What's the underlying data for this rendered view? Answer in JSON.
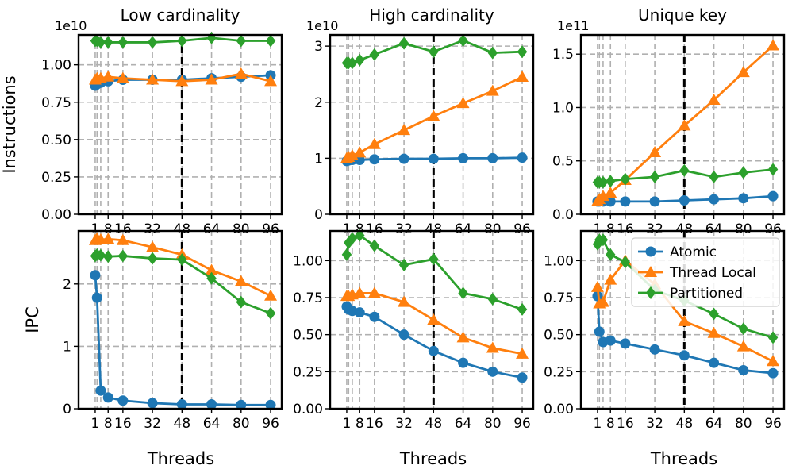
{
  "chart_data": {
    "type": "line",
    "x": [
      1,
      2,
      4,
      8,
      16,
      32,
      48,
      64,
      80,
      96
    ],
    "xticks": [
      1,
      8,
      16,
      32,
      48,
      64,
      80,
      96
    ],
    "xtick_labels": [
      "1",
      "8",
      "16",
      "32",
      "48",
      "64",
      "80",
      "96"
    ],
    "xlim": [
      -8,
      102
    ],
    "marker_line_x": 48,
    "series_styles": [
      {
        "name": "Atomic",
        "color": "#1f77b4",
        "marker": "circle"
      },
      {
        "name": "Thread Local",
        "color": "#ff7f0e",
        "marker": "triangle"
      },
      {
        "name": "Partitioned",
        "color": "#2ca02c",
        "marker": "diamond"
      }
    ],
    "legend": {
      "placement": "top-right of bottom-right panel",
      "entries": [
        "Atomic",
        "Thread Local",
        "Partitioned"
      ]
    },
    "row_labels": [
      "Instructions",
      "IPC"
    ],
    "xlabel": "Threads",
    "panels": [
      {
        "title": "Low cardinality",
        "ylabel": "Instructions",
        "offset_label": "1e10",
        "ylim": [
          0,
          1.2
        ],
        "yticks": [
          0,
          0.25,
          0.5,
          0.75,
          1.0
        ],
        "ytick_labels": [
          "0.00",
          "0.25",
          "0.50",
          "0.75",
          "1.00"
        ],
        "series": [
          {
            "name": "Atomic",
            "values": [
              0.86,
              0.87,
              0.88,
              0.89,
              0.9,
              0.9,
              0.9,
              0.91,
              0.92,
              0.93
            ]
          },
          {
            "name": "Thread Local",
            "values": [
              0.9,
              0.91,
              0.91,
              0.92,
              0.91,
              0.9,
              0.89,
              0.9,
              0.94,
              0.89
            ]
          },
          {
            "name": "Partitioned",
            "values": [
              1.16,
              1.16,
              1.15,
              1.15,
              1.15,
              1.15,
              1.16,
              1.18,
              1.16,
              1.16
            ]
          }
        ]
      },
      {
        "title": "High cardinality",
        "ylabel": "",
        "offset_label": "1e10",
        "ylim": [
          0,
          3.2
        ],
        "yticks": [
          0,
          1,
          2,
          3
        ],
        "ytick_labels": [
          "0",
          "1",
          "2",
          "3"
        ],
        "series": [
          {
            "name": "Atomic",
            "values": [
              0.95,
              0.96,
              0.97,
              0.97,
              0.98,
              0.99,
              0.99,
              1.0,
              1.0,
              1.01
            ]
          },
          {
            "name": "Thread Local",
            "values": [
              1.0,
              1.02,
              1.05,
              1.1,
              1.25,
              1.5,
              1.75,
              1.98,
              2.2,
              2.45
            ]
          },
          {
            "name": "Partitioned",
            "values": [
              2.7,
              2.7,
              2.7,
              2.75,
              2.85,
              3.05,
              2.9,
              3.1,
              2.88,
              2.9
            ]
          }
        ]
      },
      {
        "title": "Unique key",
        "ylabel": "",
        "offset_label": "1e11",
        "ylim": [
          0,
          1.68
        ],
        "yticks": [
          0,
          0.5,
          1.0,
          1.5
        ],
        "ytick_labels": [
          "0.0",
          "0.5",
          "1.0",
          "1.5"
        ],
        "series": [
          {
            "name": "Atomic",
            "values": [
              0.12,
              0.12,
              0.12,
              0.12,
              0.12,
              0.12,
              0.13,
              0.14,
              0.15,
              0.17
            ]
          },
          {
            "name": "Thread Local",
            "values": [
              0.12,
              0.14,
              0.17,
              0.2,
              0.32,
              0.58,
              0.83,
              1.07,
              1.33,
              1.58
            ]
          },
          {
            "name": "Partitioned",
            "values": [
              0.3,
              0.3,
              0.3,
              0.31,
              0.33,
              0.35,
              0.41,
              0.35,
              0.39,
              0.42
            ]
          }
        ]
      },
      {
        "title": "",
        "ylabel": "IPC",
        "offset_label": "",
        "ylim": [
          0,
          2.85
        ],
        "yticks": [
          0,
          1,
          2
        ],
        "ytick_labels": [
          "0",
          "1",
          "2"
        ],
        "series": [
          {
            "name": "Atomic",
            "values": [
              2.14,
              1.78,
              0.29,
              0.18,
              0.13,
              0.09,
              0.07,
              0.07,
              0.06,
              0.06
            ]
          },
          {
            "name": "Thread Local",
            "values": [
              2.7,
              2.73,
              2.71,
              2.72,
              2.7,
              2.59,
              2.47,
              2.22,
              2.04,
              1.81
            ]
          },
          {
            "name": "Partitioned",
            "values": [
              2.45,
              2.47,
              2.46,
              2.44,
              2.45,
              2.41,
              2.39,
              2.09,
              1.71,
              1.53
            ]
          }
        ]
      },
      {
        "title": "",
        "ylabel": "",
        "offset_label": "",
        "ylim": [
          0,
          1.2
        ],
        "yticks": [
          0,
          0.25,
          0.5,
          0.75,
          1.0
        ],
        "ytick_labels": [
          "0.00",
          "0.25",
          "0.50",
          "0.75",
          "1.00"
        ],
        "series": [
          {
            "name": "Atomic",
            "values": [
              0.69,
              0.67,
              0.66,
              0.65,
              0.62,
              0.5,
              0.39,
              0.31,
              0.25,
              0.21
            ]
          },
          {
            "name": "Thread Local",
            "values": [
              0.76,
              0.76,
              0.77,
              0.78,
              0.78,
              0.72,
              0.6,
              0.48,
              0.41,
              0.37
            ]
          },
          {
            "name": "Partitioned",
            "values": [
              1.04,
              1.12,
              1.15,
              1.17,
              1.1,
              0.97,
              1.01,
              0.78,
              0.74,
              0.67
            ]
          }
        ]
      },
      {
        "title": "",
        "ylabel": "",
        "offset_label": "",
        "ylim": [
          0,
          1.2
        ],
        "yticks": [
          0,
          0.25,
          0.5,
          0.75,
          1.0
        ],
        "ytick_labels": [
          "0.00",
          "0.25",
          "0.50",
          "0.75",
          "1.00"
        ],
        "series": [
          {
            "name": "Atomic",
            "values": [
              0.76,
              0.52,
              0.45,
              0.46,
              0.44,
              0.4,
              0.36,
              0.31,
              0.26,
              0.24
            ]
          },
          {
            "name": "Thread Local",
            "values": [
              0.82,
              0.71,
              0.72,
              0.87,
              1.0,
              0.84,
              0.59,
              0.51,
              0.42,
              0.32
            ]
          },
          {
            "name": "Partitioned",
            "values": [
              1.11,
              1.14,
              1.14,
              1.04,
              0.99,
              0.8,
              0.73,
              0.64,
              0.54,
              0.48
            ]
          }
        ]
      }
    ]
  }
}
